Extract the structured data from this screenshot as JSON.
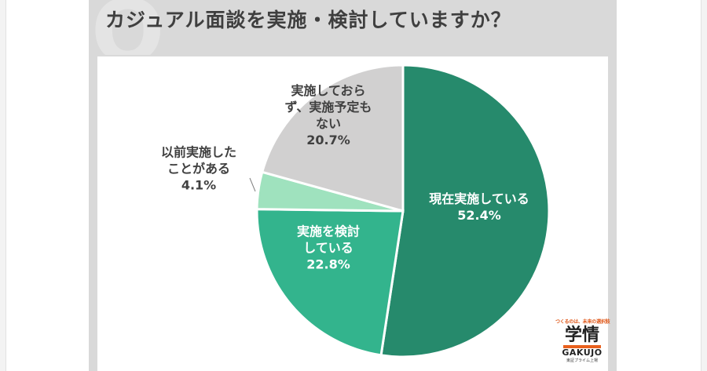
{
  "title": "カジュアル面談を実施・検討していますか？",
  "chart_data": {
    "type": "pie",
    "title": "カジュアル面談を実施・検討していますか？",
    "slices": [
      {
        "label_lines": [
          "現在実施している"
        ],
        "value": 52.4,
        "value_label": "52.4%",
        "color": "#268a6c",
        "text_color": "#ffffff"
      },
      {
        "label_lines": [
          "実施を検討",
          "している"
        ],
        "value": 22.8,
        "value_label": "22.8%",
        "color": "#33b48d",
        "text_color": "#ffffff"
      },
      {
        "label_lines": [
          "以前実施した",
          "ことがある"
        ],
        "value": 4.1,
        "value_label": "4.1%",
        "color": "#9fe2be",
        "text_color": "#404040"
      },
      {
        "label_lines": [
          "実施しておら",
          "ず、実施予定も",
          "ない"
        ],
        "value": 20.7,
        "value_label": "20.7%",
        "color": "#d1d0d0",
        "text_color": "#404040"
      }
    ],
    "start_angle_deg": 0,
    "direction": "clockwise"
  },
  "logo": {
    "tagline": "つくるのは、未来の選択肢",
    "kanji": "学情",
    "english": "GAKUJO",
    "subline": "東証プライム上場"
  }
}
